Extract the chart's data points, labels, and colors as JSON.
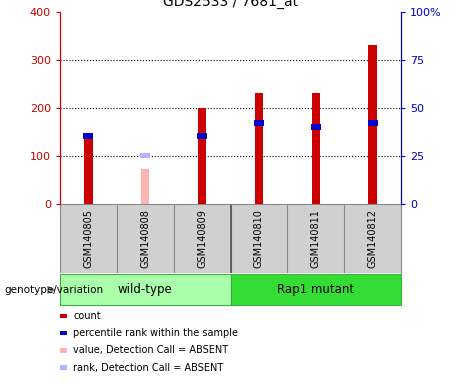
{
  "title": "GDS2533 / 7681_at",
  "samples": [
    "GSM140805",
    "GSM140808",
    "GSM140809",
    "GSM140810",
    "GSM140811",
    "GSM140812"
  ],
  "count_values": [
    140,
    null,
    200,
    230,
    230,
    330
  ],
  "percentile_values": [
    35,
    null,
    35,
    42,
    40,
    42
  ],
  "absent_value_values": [
    null,
    72,
    null,
    null,
    null,
    null
  ],
  "absent_rank_values": [
    null,
    25,
    null,
    null,
    null,
    null
  ],
  "left_ylim": [
    0,
    400
  ],
  "right_ylim": [
    0,
    100
  ],
  "left_yticks": [
    0,
    100,
    200,
    300,
    400
  ],
  "right_yticks": [
    0,
    25,
    50,
    75,
    100
  ],
  "right_yticklabels": [
    "0",
    "25",
    "50",
    "75",
    "100%"
  ],
  "left_ycolor": "#cc0000",
  "right_ycolor": "#0000cc",
  "bar_width": 0.15,
  "count_color": "#cc0000",
  "percentile_color": "#0000cc",
  "absent_value_color": "#ffb3b3",
  "absent_rank_color": "#b3b3ff",
  "wildtype_label": "wild-type",
  "rap1_label": "Rap1 mutant",
  "wildtype_color": "#aaffaa",
  "rap1_color": "#33dd33",
  "genotype_label": "genotype/variation",
  "legend_items": [
    {
      "label": "count",
      "color": "#cc0000"
    },
    {
      "label": "percentile rank within the sample",
      "color": "#0000cc"
    },
    {
      "label": "value, Detection Call = ABSENT",
      "color": "#ffb3b3"
    },
    {
      "label": "rank, Detection Call = ABSENT",
      "color": "#b3b3ff"
    }
  ],
  "label_box_color": "#d0d0d0",
  "label_box_edge": "#888888"
}
